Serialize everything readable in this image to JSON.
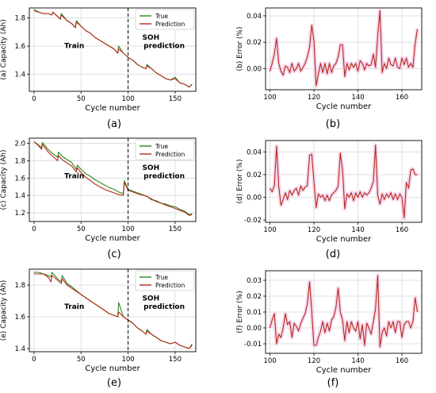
{
  "colors": {
    "true": "#2a8a1e",
    "prediction": "#b5291c",
    "band": "#f6d3ea"
  },
  "captions": [
    "(a)",
    "(b)",
    "(c)",
    "(d)",
    "(e)",
    "(f)"
  ],
  "chart_data": [
    {
      "panel": "a",
      "type": "line",
      "ylabel": "(a) Capacity (Ah)",
      "xlabel": "Cycle number",
      "xlim": [
        -5,
        172
      ],
      "ylim": [
        1.28,
        1.87
      ],
      "xticks": [
        0,
        50,
        100,
        150
      ],
      "yticks": [
        1.4,
        1.6,
        1.8
      ],
      "legend": [
        "True",
        "Prediction"
      ],
      "legend_position": "top-right",
      "annotations": [
        "Train",
        "SOH prediction"
      ],
      "split_cycle": 100,
      "series": [
        {
          "name": "True",
          "x": [
            0,
            5,
            10,
            15,
            19,
            20,
            25,
            28,
            29,
            35,
            40,
            44,
            45,
            50,
            55,
            60,
            65,
            70,
            75,
            80,
            85,
            89,
            90,
            95,
            100,
            105,
            110,
            115,
            119,
            120,
            125,
            130,
            135,
            140,
            145,
            150,
            155,
            160,
            165,
            168
          ],
          "y": [
            1.86,
            1.84,
            1.83,
            1.83,
            1.82,
            1.84,
            1.81,
            1.79,
            1.83,
            1.78,
            1.76,
            1.73,
            1.78,
            1.74,
            1.71,
            1.69,
            1.66,
            1.64,
            1.62,
            1.6,
            1.58,
            1.55,
            1.6,
            1.55,
            1.52,
            1.5,
            1.47,
            1.45,
            1.44,
            1.47,
            1.44,
            1.41,
            1.39,
            1.37,
            1.36,
            1.38,
            1.34,
            1.33,
            1.31,
            1.33
          ]
        },
        {
          "name": "Prediction",
          "x": [
            0,
            5,
            10,
            15,
            19,
            20,
            25,
            28,
            29,
            35,
            40,
            44,
            45,
            50,
            55,
            60,
            65,
            70,
            75,
            80,
            85,
            89,
            90,
            95,
            100,
            105,
            110,
            115,
            119,
            120,
            125,
            130,
            135,
            140,
            145,
            150,
            155,
            160,
            165,
            168
          ],
          "y": [
            1.85,
            1.84,
            1.83,
            1.83,
            1.82,
            1.84,
            1.81,
            1.79,
            1.82,
            1.78,
            1.76,
            1.73,
            1.77,
            1.74,
            1.71,
            1.69,
            1.66,
            1.64,
            1.62,
            1.6,
            1.58,
            1.55,
            1.58,
            1.55,
            1.52,
            1.5,
            1.47,
            1.45,
            1.44,
            1.46,
            1.44,
            1.41,
            1.39,
            1.37,
            1.36,
            1.37,
            1.34,
            1.33,
            1.31,
            1.33
          ]
        }
      ]
    },
    {
      "panel": "b",
      "type": "line",
      "ylabel": "(b) Error (%)",
      "xlabel": "Cycle number",
      "xlim": [
        98,
        169
      ],
      "ylim": [
        -0.016,
        0.046
      ],
      "xticks": [
        100,
        120,
        140,
        160
      ],
      "yticks": [
        0.0,
        0.02,
        0.04
      ],
      "series": [
        {
          "name": "Prediction",
          "x": [
            100,
            101,
            102,
            103,
            104,
            105,
            106,
            107,
            108,
            109,
            110,
            111,
            112,
            113,
            114,
            115,
            116,
            117,
            118,
            119,
            120,
            121,
            122,
            123,
            124,
            125,
            126,
            127,
            128,
            129,
            130,
            131,
            132,
            133,
            134,
            135,
            136,
            137,
            138,
            139,
            140,
            141,
            142,
            143,
            144,
            145,
            146,
            147,
            148,
            149,
            150,
            151,
            152,
            153,
            154,
            155,
            156,
            157,
            158,
            159,
            160,
            161,
            162,
            163,
            164,
            165,
            166,
            167
          ],
          "y": [
            -0.002,
            0.004,
            0.011,
            0.023,
            0.004,
            -0.002,
            -0.005,
            0.002,
            0.001,
            -0.003,
            0.004,
            -0.002,
            0.0,
            0.004,
            -0.002,
            0.001,
            0.004,
            0.009,
            0.016,
            0.033,
            0.021,
            -0.013,
            -0.004,
            0.004,
            -0.003,
            0.004,
            -0.004,
            0.004,
            -0.003,
            0.002,
            0.004,
            0.009,
            0.018,
            0.018,
            -0.006,
            0.004,
            -0.001,
            0.004,
            0.001,
            0.004,
            -0.002,
            0.006,
            0.004,
            -0.001,
            0.004,
            0.002,
            0.003,
            0.011,
            0.001,
            0.025,
            0.044,
            -0.003,
            0.004,
            0.0,
            0.008,
            0.003,
            0.002,
            0.008,
            0.001,
            0.0,
            0.008,
            0.003,
            0.008,
            0.001,
            0.004,
            0.001,
            0.019,
            0.03
          ]
        }
      ]
    },
    {
      "panel": "c",
      "type": "line",
      "ylabel": "(c) Capacity (Ah)",
      "xlabel": "Cycle number",
      "xlim": [
        -5,
        172
      ],
      "ylim": [
        1.1,
        2.06
      ],
      "xticks": [
        0,
        50,
        100,
        150
      ],
      "yticks": [
        1.2,
        1.4,
        1.6,
        1.8,
        2.0
      ],
      "legend": [
        "True",
        "Prediction"
      ],
      "legend_position": "top-right",
      "annotations": [
        "Train",
        "SOH prediction"
      ],
      "split_cycle": 100,
      "series": [
        {
          "name": "True",
          "x": [
            0,
            5,
            8,
            9,
            15,
            20,
            25,
            26,
            30,
            40,
            45,
            46,
            50,
            55,
            60,
            65,
            70,
            75,
            80,
            85,
            90,
            95,
            96,
            100,
            110,
            120,
            125,
            130,
            135,
            140,
            145,
            150,
            155,
            160,
            165,
            168
          ],
          "y": [
            2.02,
            1.98,
            1.95,
            2.01,
            1.93,
            1.88,
            1.84,
            1.9,
            1.85,
            1.78,
            1.7,
            1.75,
            1.7,
            1.65,
            1.62,
            1.58,
            1.55,
            1.52,
            1.49,
            1.47,
            1.44,
            1.42,
            1.57,
            1.47,
            1.43,
            1.39,
            1.35,
            1.34,
            1.31,
            1.3,
            1.28,
            1.27,
            1.24,
            1.22,
            1.18,
            1.19
          ]
        },
        {
          "name": "Prediction",
          "x": [
            0,
            5,
            8,
            9,
            15,
            20,
            25,
            26,
            30,
            40,
            45,
            46,
            50,
            55,
            60,
            65,
            70,
            75,
            80,
            85,
            90,
            95,
            96,
            100,
            110,
            120,
            125,
            130,
            135,
            140,
            145,
            150,
            155,
            160,
            165,
            168
          ],
          "y": [
            2.02,
            1.97,
            1.93,
            1.99,
            1.9,
            1.85,
            1.8,
            1.86,
            1.81,
            1.74,
            1.67,
            1.72,
            1.66,
            1.61,
            1.57,
            1.53,
            1.5,
            1.47,
            1.45,
            1.43,
            1.41,
            1.4,
            1.55,
            1.46,
            1.42,
            1.39,
            1.36,
            1.33,
            1.31,
            1.29,
            1.27,
            1.25,
            1.23,
            1.21,
            1.17,
            1.18
          ]
        }
      ]
    },
    {
      "panel": "d",
      "type": "line",
      "ylabel": "(d) Error (%)",
      "xlabel": "Cycle number",
      "xlim": [
        98,
        169
      ],
      "ylim": [
        -0.022,
        0.05
      ],
      "xticks": [
        100,
        120,
        140,
        160
      ],
      "yticks": [
        -0.02,
        0.0,
        0.02,
        0.04
      ],
      "series": [
        {
          "name": "Prediction",
          "x": [
            100,
            101,
            102,
            103,
            104,
            105,
            106,
            107,
            108,
            109,
            110,
            111,
            112,
            113,
            114,
            115,
            116,
            117,
            118,
            119,
            120,
            121,
            122,
            123,
            124,
            125,
            126,
            127,
            128,
            129,
            130,
            131,
            132,
            133,
            134,
            135,
            136,
            137,
            138,
            139,
            140,
            141,
            142,
            143,
            144,
            145,
            146,
            147,
            148,
            149,
            150,
            151,
            152,
            153,
            154,
            155,
            156,
            157,
            158,
            159,
            160,
            161,
            162,
            163,
            164,
            165,
            166,
            167
          ],
          "y": [
            0.008,
            0.005,
            0.01,
            0.045,
            0.01,
            -0.007,
            -0.002,
            0.004,
            -0.002,
            0.006,
            0.002,
            0.006,
            0.008,
            0.002,
            0.01,
            0.006,
            0.009,
            0.01,
            0.037,
            0.038,
            0.014,
            -0.009,
            0.003,
            0.0,
            0.002,
            -0.003,
            0.002,
            -0.003,
            0.002,
            0.004,
            0.006,
            0.01,
            0.039,
            0.024,
            -0.01,
            0.003,
            0.0,
            0.004,
            -0.003,
            0.004,
            0.0,
            0.005,
            0.0,
            0.004,
            0.002,
            0.004,
            0.008,
            0.014,
            0.046,
            0.002,
            -0.006,
            0.003,
            -0.002,
            0.003,
            0.0,
            0.004,
            -0.002,
            0.003,
            -0.002,
            0.003,
            0.0,
            -0.018,
            0.013,
            0.008,
            0.024,
            0.025,
            0.02,
            0.02
          ]
        }
      ]
    },
    {
      "panel": "e",
      "type": "line",
      "ylabel": "(e) Capacity (Ah)",
      "xlabel": "Cycle number",
      "xlim": [
        -5,
        172
      ],
      "ylim": [
        1.38,
        1.9
      ],
      "xticks": [
        0,
        50,
        100,
        150
      ],
      "yticks": [
        1.4,
        1.6,
        1.8
      ],
      "legend": [
        "True",
        "Prediction"
      ],
      "legend_position": "top-right",
      "annotations": [
        "Train",
        "SOH prediction"
      ],
      "split_cycle": 100,
      "series": [
        {
          "name": "True",
          "x": [
            0,
            5,
            10,
            15,
            18,
            19,
            25,
            29,
            30,
            35,
            40,
            50,
            60,
            70,
            80,
            89,
            90,
            95,
            100,
            105,
            110,
            115,
            119,
            120,
            125,
            130,
            135,
            140,
            145,
            150,
            155,
            160,
            165,
            168
          ],
          "y": [
            1.88,
            1.88,
            1.87,
            1.86,
            1.85,
            1.88,
            1.84,
            1.82,
            1.86,
            1.81,
            1.79,
            1.74,
            1.7,
            1.66,
            1.62,
            1.6,
            1.69,
            1.6,
            1.58,
            1.56,
            1.53,
            1.51,
            1.49,
            1.52,
            1.49,
            1.47,
            1.45,
            1.44,
            1.43,
            1.44,
            1.42,
            1.41,
            1.4,
            1.43
          ]
        },
        {
          "name": "Prediction",
          "x": [
            0,
            5,
            10,
            15,
            18,
            19,
            25,
            29,
            30,
            35,
            40,
            50,
            60,
            70,
            80,
            89,
            90,
            95,
            100,
            105,
            110,
            115,
            119,
            120,
            125,
            130,
            135,
            140,
            145,
            150,
            155,
            160,
            165,
            168
          ],
          "y": [
            1.87,
            1.87,
            1.87,
            1.85,
            1.82,
            1.86,
            1.83,
            1.81,
            1.84,
            1.8,
            1.78,
            1.74,
            1.7,
            1.66,
            1.62,
            1.6,
            1.63,
            1.6,
            1.58,
            1.56,
            1.53,
            1.51,
            1.49,
            1.51,
            1.49,
            1.47,
            1.45,
            1.44,
            1.43,
            1.44,
            1.42,
            1.41,
            1.4,
            1.42
          ]
        }
      ]
    },
    {
      "panel": "f",
      "type": "line",
      "ylabel": "(f) Error (%)",
      "xlabel": "Cycle number",
      "xlim": [
        98,
        169
      ],
      "ylim": [
        -0.016,
        0.036
      ],
      "xticks": [
        100,
        120,
        140,
        160
      ],
      "yticks": [
        -0.01,
        0.0,
        0.01,
        0.02,
        0.03
      ],
      "series": [
        {
          "name": "Prediction",
          "x": [
            100,
            101,
            102,
            103,
            104,
            105,
            106,
            107,
            108,
            109,
            110,
            111,
            112,
            113,
            114,
            115,
            116,
            117,
            118,
            119,
            120,
            121,
            122,
            123,
            124,
            125,
            126,
            127,
            128,
            129,
            130,
            131,
            132,
            133,
            134,
            135,
            136,
            137,
            138,
            139,
            140,
            141,
            142,
            143,
            144,
            145,
            146,
            147,
            148,
            149,
            150,
            151,
            152,
            153,
            154,
            155,
            156,
            157,
            158,
            159,
            160,
            161,
            162,
            163,
            164,
            165,
            166,
            167
          ],
          "y": [
            0.0,
            0.005,
            0.009,
            -0.01,
            -0.004,
            -0.006,
            0.0,
            0.009,
            0.002,
            0.004,
            -0.006,
            0.003,
            0.001,
            -0.002,
            0.003,
            0.006,
            0.009,
            0.015,
            0.029,
            0.01,
            -0.011,
            -0.011,
            -0.006,
            -0.002,
            0.004,
            -0.003,
            0.003,
            -0.002,
            0.005,
            0.007,
            0.013,
            0.025,
            0.01,
            0.005,
            -0.008,
            0.004,
            -0.003,
            0.004,
            0.0,
            -0.002,
            0.004,
            -0.007,
            0.002,
            -0.011,
            0.003,
            0.0,
            -0.004,
            0.004,
            0.012,
            0.033,
            -0.012,
            -0.003,
            0.0,
            -0.005,
            0.004,
            0.0,
            0.004,
            -0.003,
            0.004,
            0.004,
            -0.006,
            0.002,
            0.004,
            0.004,
            0.0,
            0.004,
            0.019,
            0.01
          ]
        }
      ]
    }
  ]
}
